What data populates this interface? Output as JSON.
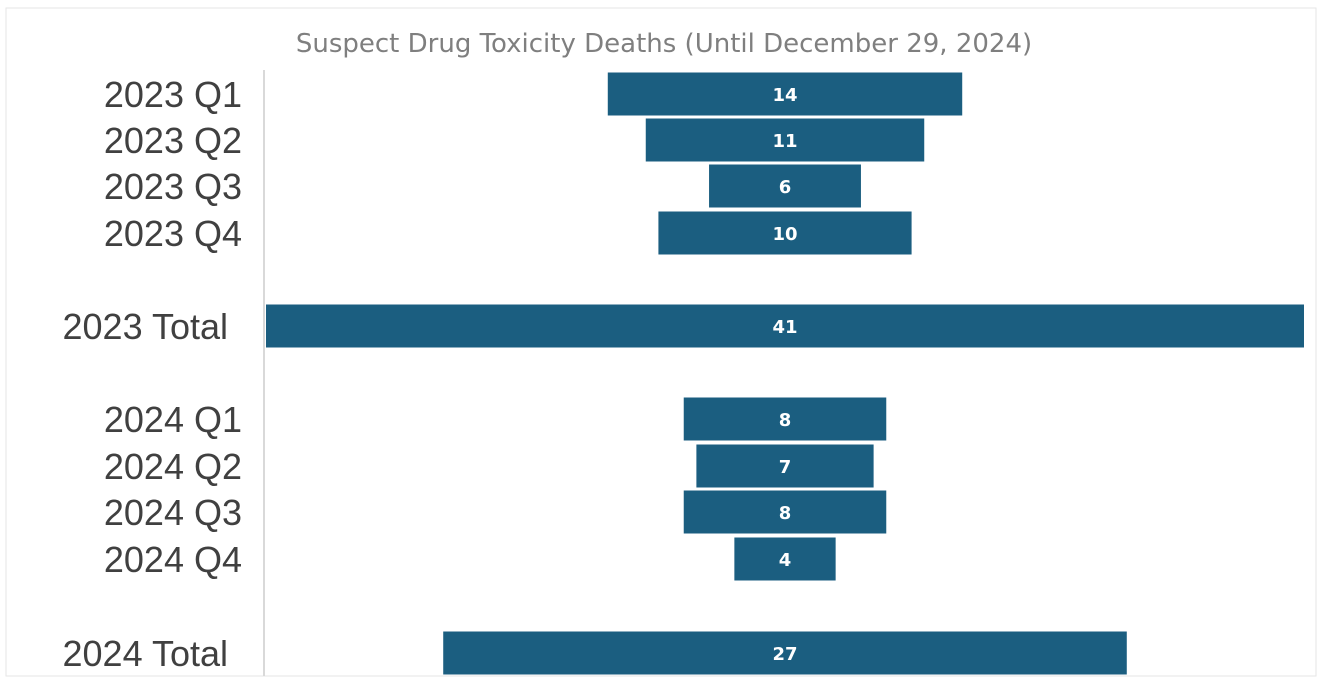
{
  "chart_data": {
    "type": "bar",
    "orientation": "horizontal",
    "layout": "centered funnel",
    "title": "Suspect Drug Toxicity Deaths (Until December 29, 2024)",
    "categories": [
      "2023 Q1",
      "2023 Q2",
      "2023 Q3",
      "2023 Q4",
      "2023 Total",
      "2024 Q1",
      "2024 Q2",
      "2024 Q3",
      "2024 Q4",
      "2024 Total"
    ],
    "values": [
      14,
      11,
      6,
      10,
      41,
      8,
      7,
      8,
      4,
      27
    ],
    "value_labels": [
      "14",
      "11",
      "6",
      "10",
      "41",
      "8",
      "7",
      "8",
      "4",
      "27"
    ],
    "xlim": [
      0,
      41
    ],
    "bar_color": "#1b5e80",
    "label_color": "#ffffff",
    "category_label_color": "#404040",
    "title_color": "#7f7f7f",
    "grid": false,
    "legend": "none"
  }
}
